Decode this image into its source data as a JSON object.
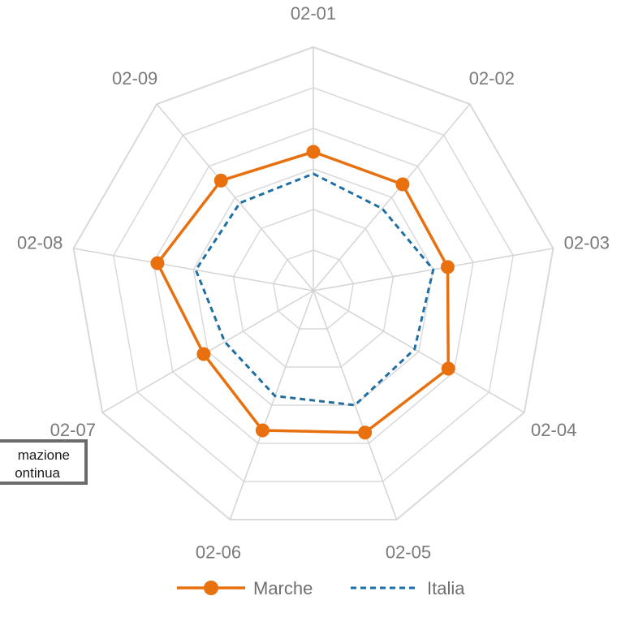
{
  "chart_data": {
    "type": "radar",
    "categories": [
      "02-01",
      "02-02",
      "02-03",
      "02-04",
      "02-05",
      "02-06",
      "02-07",
      "02-08",
      "02-09"
    ],
    "rmax": 10,
    "grid_levels": 6,
    "grid": true,
    "legend_position": "bottom-center",
    "series": [
      {
        "name": "Marche",
        "values": [
          5.7,
          5.7,
          5.6,
          6.4,
          6.2,
          6.1,
          5.2,
          6.5,
          5.9
        ],
        "color": "#E8700F",
        "style": "solid-marker"
      },
      {
        "name": "Italia",
        "values": [
          4.8,
          4.4,
          5.0,
          4.8,
          5.0,
          4.6,
          4.2,
          4.9,
          4.7
        ],
        "color": "#1F6FA3",
        "style": "dashed"
      }
    ]
  },
  "note": {
    "line1": "mazione",
    "line2": "ontinua"
  }
}
